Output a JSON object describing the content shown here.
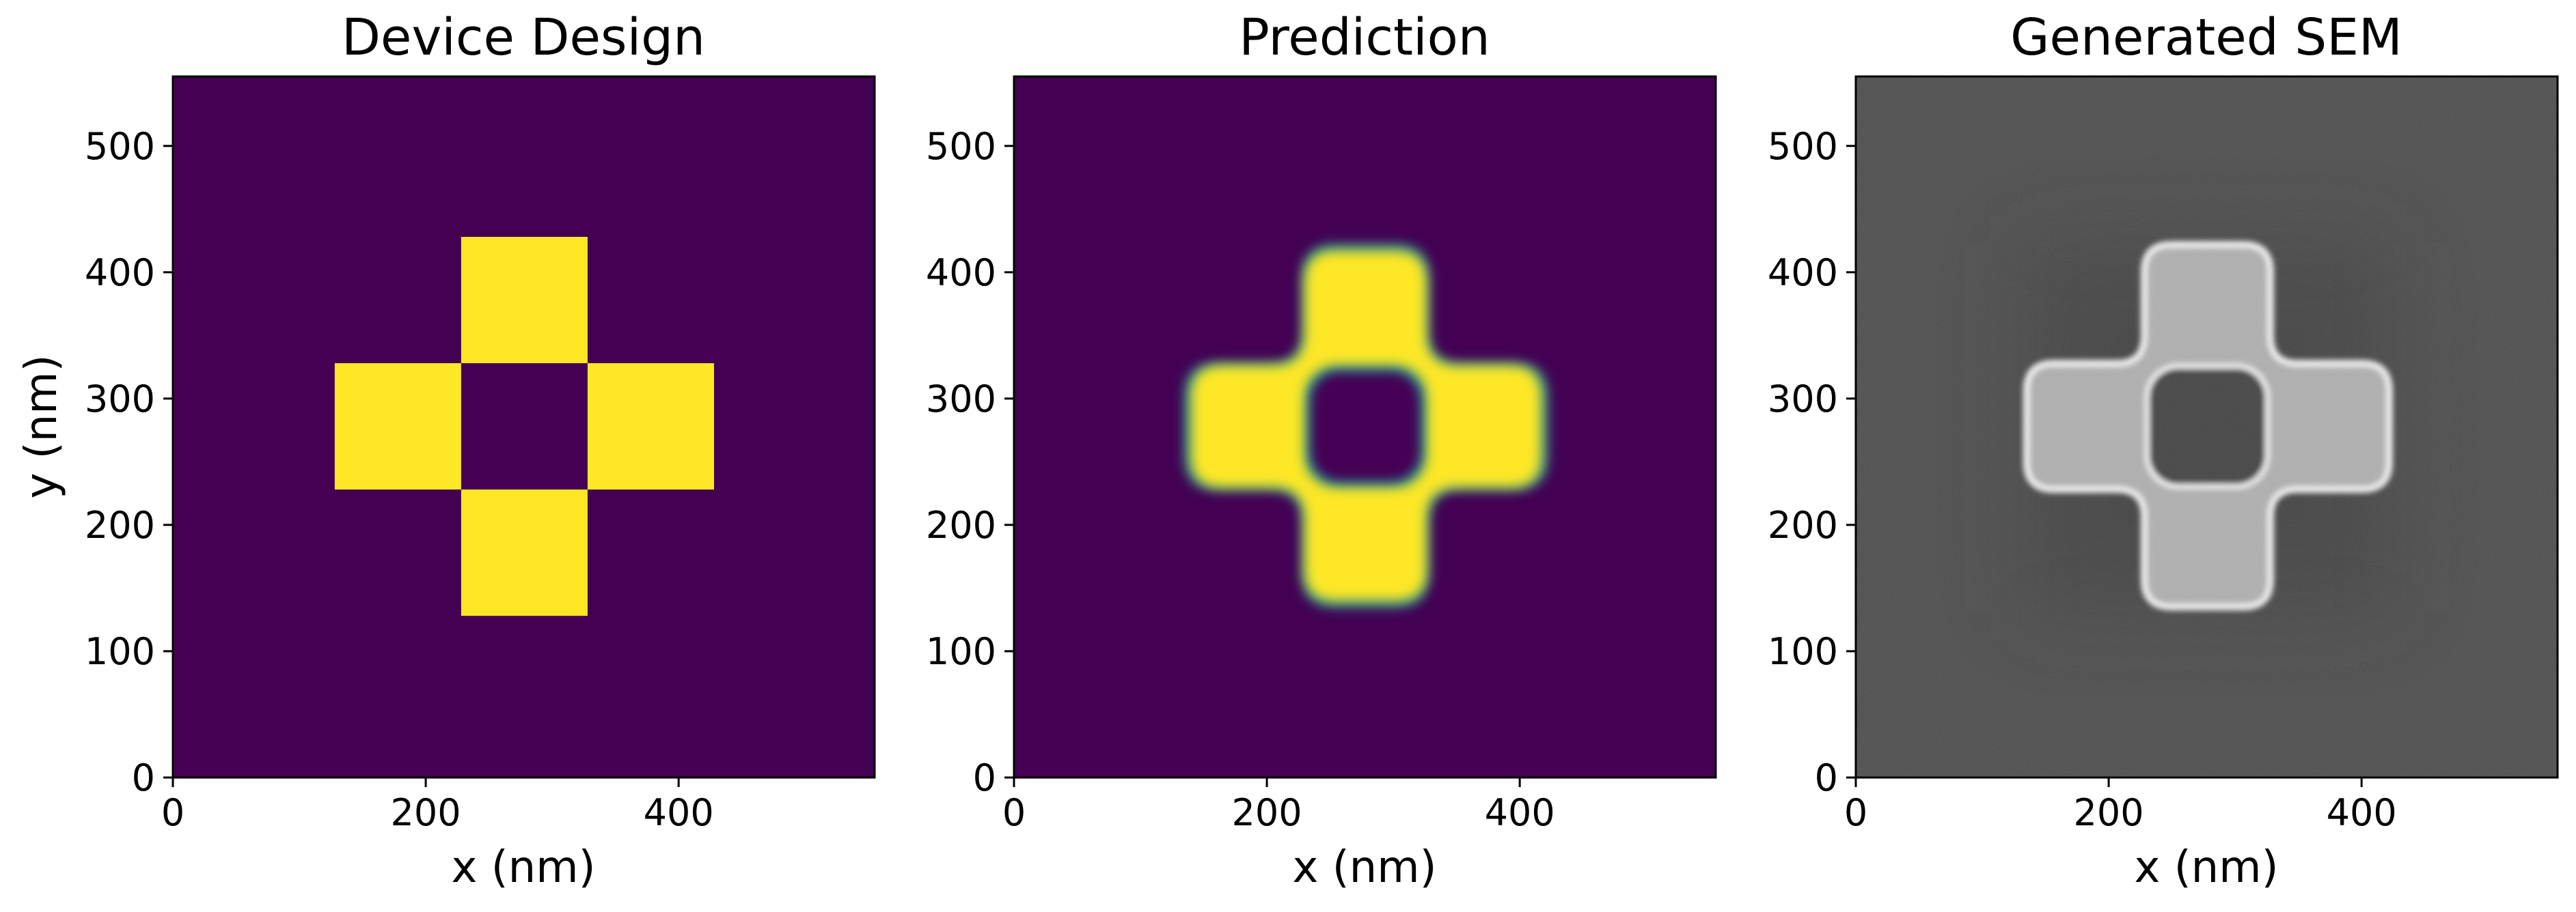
{
  "chart_data": [
    {
      "type": "heatmap",
      "title": "Device Design",
      "xlabel": "x (nm)",
      "ylabel": "y (nm)",
      "xlim": [
        0,
        555
      ],
      "ylim": [
        0,
        555
      ],
      "xticks": [
        0,
        200,
        400
      ],
      "yticks": [
        0,
        100,
        200,
        300,
        400,
        500
      ],
      "colormap": "viridis",
      "colors": {
        "background": "#440154",
        "feature": "#fde725"
      },
      "shape": "cross of four square blocks around an empty center",
      "blocks_nm": [
        {
          "x": [
            228,
            328
          ],
          "y": [
            328,
            428
          ]
        },
        {
          "x": [
            128,
            228
          ],
          "y": [
            228,
            328
          ]
        },
        {
          "x": [
            328,
            428
          ],
          "y": [
            228,
            328
          ]
        },
        {
          "x": [
            228,
            328
          ],
          "y": [
            128,
            228
          ]
        }
      ]
    },
    {
      "type": "heatmap",
      "title": "Prediction",
      "xlabel": "x (nm)",
      "ylabel": "",
      "xlim": [
        0,
        555
      ],
      "ylim": [
        0,
        555
      ],
      "xticks": [
        0,
        200,
        400
      ],
      "yticks": [
        0,
        100,
        200,
        300,
        400,
        500
      ],
      "colormap": "viridis",
      "colors": {
        "background": "#440154",
        "feature": "#fde725",
        "edge": "#21918c"
      },
      "shape": "rounded cross with a rounded square hole at center",
      "arms_nm": {
        "vertical": {
          "x": [
            228,
            328
          ],
          "y": [
            135,
            422
          ]
        },
        "horizontal": {
          "x": [
            135,
            422
          ],
          "y": [
            228,
            328
          ]
        }
      },
      "hole_nm": {
        "x": [
          228,
          328
        ],
        "y": [
          228,
          328
        ]
      }
    },
    {
      "type": "heatmap",
      "title": "Generated SEM",
      "xlabel": "x (nm)",
      "ylabel": "",
      "xlim": [
        0,
        555
      ],
      "ylim": [
        0,
        555
      ],
      "xticks": [
        0,
        200,
        400
      ],
      "yticks": [
        0,
        100,
        200,
        300,
        400,
        500
      ],
      "colormap": "gray",
      "colors": {
        "background": "#454545",
        "feature": "#a8a8a8",
        "edge_highlight": "#e8e8e8"
      },
      "shape": "rounded cross with a rounded square hole at center",
      "arms_nm": {
        "vertical": {
          "x": [
            228,
            328
          ],
          "y": [
            135,
            422
          ]
        },
        "horizontal": {
          "x": [
            135,
            422
          ],
          "y": [
            228,
            328
          ]
        }
      },
      "hole_nm": {
        "x": [
          228,
          328
        ],
        "y": [
          228,
          328
        ]
      }
    }
  ]
}
